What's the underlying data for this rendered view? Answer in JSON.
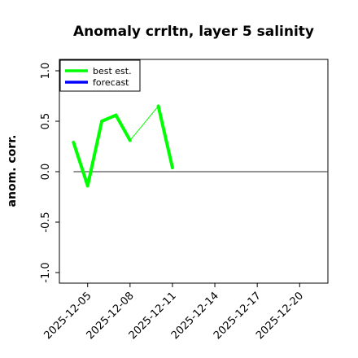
{
  "chart_data": {
    "type": "line",
    "title": "Anomaly crrltn, layer 5 salinity",
    "ylabel": "anom. corr.",
    "xlabel": "",
    "ylim": [
      -1.0,
      1.0
    ],
    "y_ticks": [
      "-1.0",
      "-0.5",
      "0.0",
      "0.5",
      "1.0"
    ],
    "y_tick_values": [
      -1.0,
      -0.5,
      0.0,
      0.5,
      1.0
    ],
    "x_ticks": [
      "2025-12-05",
      "2025-12-08",
      "2025-12-11",
      "2025-12-14",
      "2025-12-17",
      "2025-12-20"
    ],
    "highlight_tick": "2025-12-11",
    "highlight_color": "#228b22",
    "xlim": [
      "2025-12-03",
      "2025-12-22"
    ],
    "grid": false,
    "legend_position": "top-left",
    "series": [
      {
        "name": "best est.",
        "color": "#00ff00",
        "points": [
          {
            "x": "2025-12-04",
            "y": 0.29
          },
          {
            "x": "2025-12-05",
            "y": -0.14
          },
          {
            "x": "2025-12-06",
            "y": 0.5
          },
          {
            "x": "2025-12-07",
            "y": 0.56
          },
          {
            "x": "2025-12-08",
            "y": 0.31
          },
          {
            "x": "2025-12-10",
            "y": 0.65
          },
          {
            "x": "2025-12-11",
            "y": 0.04
          }
        ]
      },
      {
        "name": "forecast",
        "color": "#0000ff",
        "points": []
      }
    ],
    "reference_line": {
      "y": 0.0,
      "from": "2025-12-04",
      "to": "2025-12-22",
      "color": "#555555"
    }
  }
}
